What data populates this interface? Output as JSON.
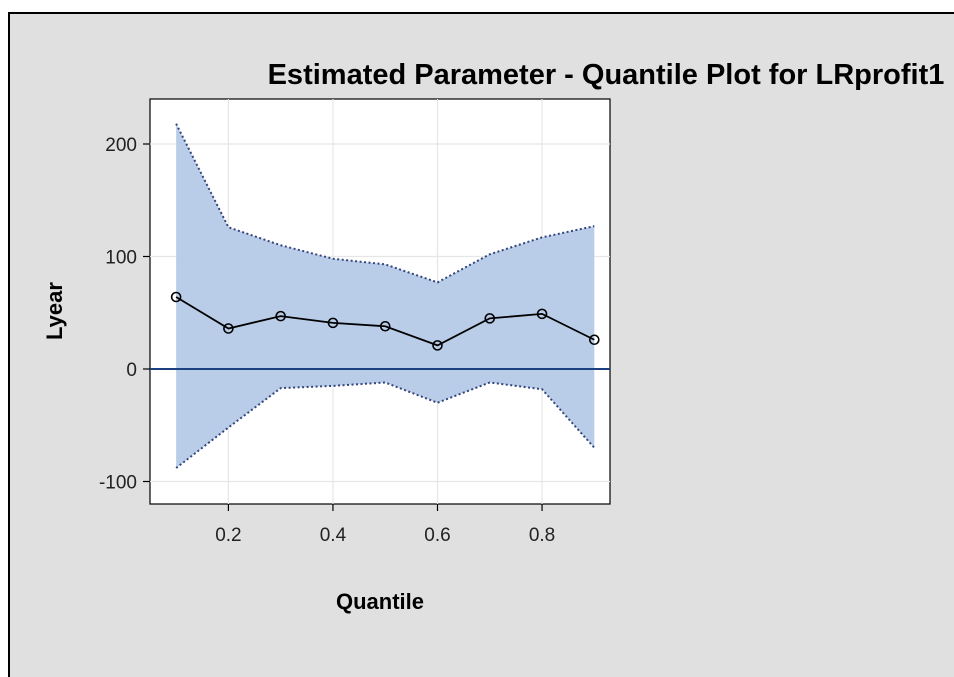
{
  "chart_data": {
    "type": "line",
    "title": "Estimated Parameter - Quantile Plot for LRprofit1",
    "xlabel": "Quantile",
    "ylabel": "Lyear",
    "xlim": [
      0.05,
      0.93
    ],
    "ylim": [
      -120,
      240
    ],
    "x_ticks": [
      0.2,
      0.4,
      0.6,
      0.8
    ],
    "y_ticks": [
      -100,
      0,
      100,
      200
    ],
    "x": [
      0.1,
      0.2,
      0.3,
      0.4,
      0.5,
      0.6,
      0.7,
      0.8,
      0.9
    ],
    "series": [
      {
        "values": [
          64,
          36,
          47,
          41,
          38,
          21,
          45,
          49,
          26
        ]
      }
    ],
    "band_upper": [
      218,
      126,
      110,
      98,
      93,
      77,
      102,
      117,
      127
    ],
    "band_lower": [
      -88,
      -52,
      -17,
      -15,
      -12,
      -30,
      -12,
      -18,
      -70
    ],
    "reference_line_y": 0,
    "grid": true,
    "colors": {
      "band": "#b9cde9",
      "band_edge": "#33457a",
      "line": "#000000",
      "reference": "#1b3f7f",
      "grid": "#e6e6e6",
      "background": "#e0e0e0",
      "plot_background": "#ffffff"
    }
  }
}
